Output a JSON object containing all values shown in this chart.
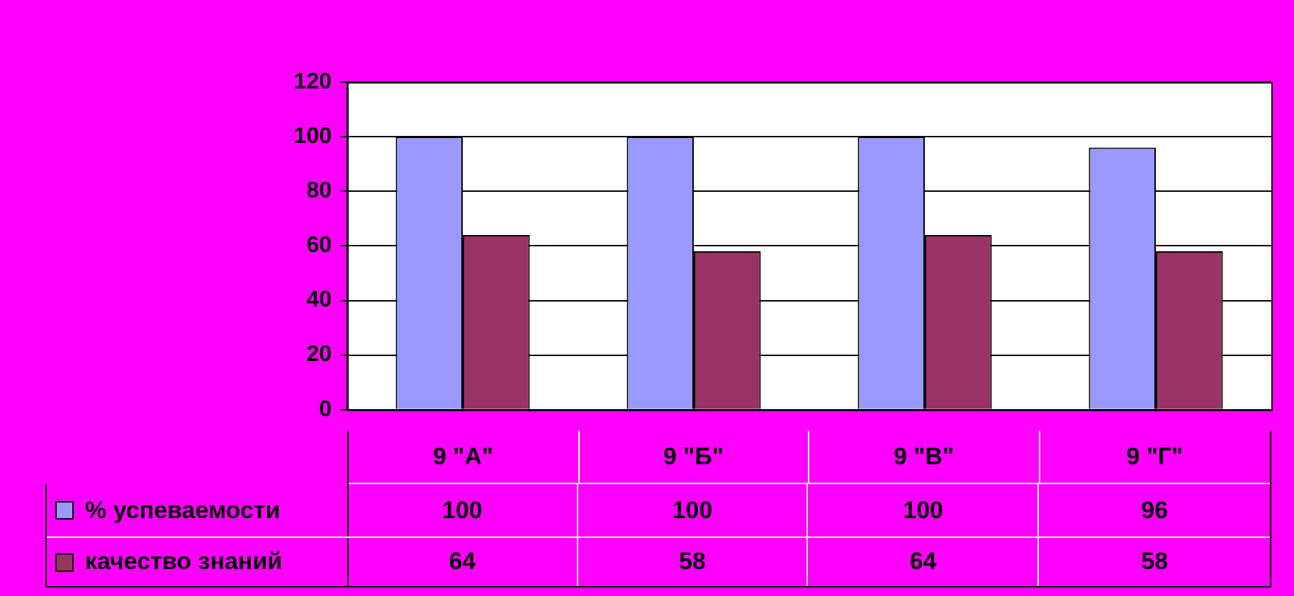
{
  "chart_data": {
    "type": "bar",
    "categories": [
      "9 \"А\"",
      "9 \"Б\"",
      "9 \"В\"",
      "9 \"Г\""
    ],
    "series": [
      {
        "name": "% успеваемости",
        "color": "#9999ff",
        "values": [
          100,
          100,
          100,
          96
        ]
      },
      {
        "name": "качество знаний",
        "color": "#993366",
        "values": [
          64,
          58,
          64,
          58
        ]
      }
    ],
    "ylim": [
      0,
      120
    ],
    "yticks": [
      0,
      20,
      40,
      60,
      80,
      100,
      120
    ],
    "grid": "y",
    "legend": "bottom",
    "data_labels": true
  }
}
